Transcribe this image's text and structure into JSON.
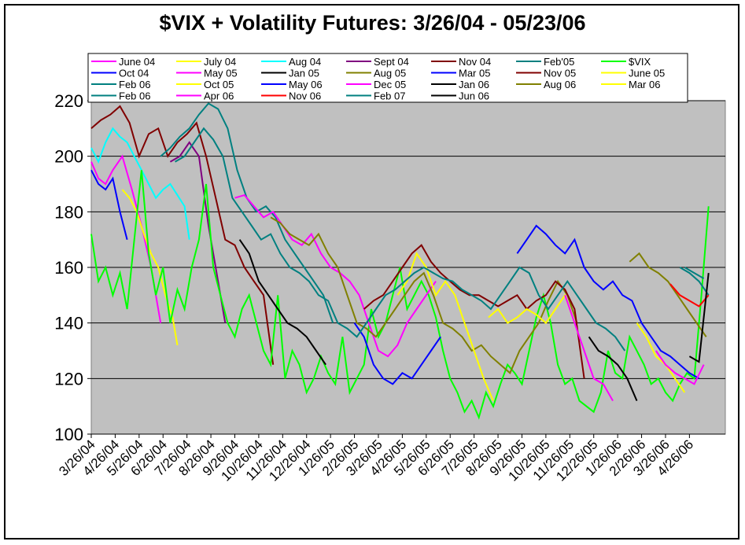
{
  "chart_data": {
    "type": "line",
    "title": "$VIX + Volatility Futures: 3/26/04 - 05/23/06",
    "xlabel": "",
    "ylabel": "",
    "ylim": [
      100,
      220
    ],
    "yticks": [
      100,
      120,
      140,
      160,
      180,
      200,
      220
    ],
    "x_tick_labels": [
      "3/26/04",
      "4/26/04",
      "5/26/04",
      "6/26/04",
      "7/26/04",
      "8/26/04",
      "9/26/04",
      "10/26/04",
      "11/26/04",
      "12/26/04",
      "1/26/05",
      "2/26/05",
      "3/26/05",
      "4/26/05",
      "5/26/05",
      "6/26/05",
      "7/26/05",
      "8/26/05",
      "9/26/05",
      "10/26/05",
      "11/26/05",
      "12/26/05",
      "1/26/06",
      "2/26/06",
      "3/26/06",
      "4/26/06"
    ],
    "grid": "horizontal",
    "plot_background": "#c0c0c0",
    "legend_placement": "top",
    "series": [
      {
        "name": "June 04",
        "color": "#ff00ff",
        "x": [
          0,
          0.3,
          0.6,
          0.9,
          1.3,
          1.7,
          2.1,
          2.5,
          2.9
        ],
        "y": [
          198,
          192,
          190,
          195,
          200,
          188,
          175,
          160,
          140
        ]
      },
      {
        "name": "July 04",
        "color": "#ffff00",
        "x": [
          1.3,
          1.6,
          1.9,
          2.2,
          2.5,
          2.8,
          3.1,
          3.4,
          3.6
        ],
        "y": [
          188,
          185,
          180,
          172,
          165,
          160,
          150,
          142,
          132
        ]
      },
      {
        "name": "Aug 04",
        "color": "#00ffff",
        "x": [
          0,
          0.3,
          0.6,
          0.9,
          1.2,
          1.5,
          1.8,
          2.1,
          2.4,
          2.7,
          3.0,
          3.3,
          3.6,
          3.9,
          4.1
        ],
        "y": [
          203,
          198,
          205,
          210,
          207,
          205,
          200,
          195,
          190,
          185,
          188,
          190,
          186,
          182,
          170
        ]
      },
      {
        "name": "Sept 04",
        "color": "#800080",
        "x": [
          3.3,
          3.7,
          4.1,
          4.5,
          4.9,
          5.3,
          5.6
        ],
        "y": [
          198,
          200,
          205,
          200,
          175,
          155,
          140
        ]
      },
      {
        "name": "Nov 04",
        "color": "#800000",
        "x": [
          0,
          0.4,
          0.8,
          1.2,
          1.6,
          2.0,
          2.4,
          2.8,
          3.2,
          3.6,
          4.0,
          4.4,
          4.8,
          5.2,
          5.6,
          6.0,
          6.4,
          6.8,
          7.2,
          7.6
        ],
        "y": [
          210,
          213,
          215,
          218,
          212,
          200,
          208,
          210,
          200,
          205,
          208,
          212,
          200,
          185,
          170,
          168,
          160,
          155,
          150,
          125
        ]
      },
      {
        "name": "Feb'05",
        "color": "#008080",
        "x": [
          2.9,
          3.3,
          3.7,
          4.1,
          4.5,
          4.9,
          5.3,
          5.7,
          6.1,
          6.5,
          6.9,
          7.3,
          7.7,
          8.1,
          8.5,
          8.9,
          9.3,
          9.7,
          10.1
        ],
        "y": [
          200,
          203,
          207,
          210,
          215,
          219,
          217,
          210,
          195,
          185,
          180,
          182,
          178,
          170,
          165,
          160,
          155,
          150,
          140
        ]
      },
      {
        "name": "$VIX",
        "color": "#00ff00",
        "x": [
          0,
          0.3,
          0.6,
          0.9,
          1.2,
          1.5,
          1.8,
          2.1,
          2.4,
          2.7,
          3.0,
          3.3,
          3.6,
          3.9,
          4.2,
          4.5,
          4.8,
          5.1,
          5.4,
          5.7,
          6.0,
          6.3,
          6.6,
          6.9,
          7.2,
          7.5,
          7.8,
          8.1,
          8.4,
          8.7,
          9.0,
          9.3,
          9.6,
          9.9,
          10.2,
          10.5,
          10.8,
          11.1,
          11.4,
          11.7,
          12.0,
          12.3,
          12.6,
          12.9,
          13.2,
          13.5,
          13.8,
          14.1,
          14.4,
          14.7,
          15.0,
          15.3,
          15.6,
          15.9,
          16.2,
          16.5,
          16.8,
          17.1,
          17.4,
          17.7,
          18.0,
          18.3,
          18.6,
          18.9,
          19.2,
          19.5,
          19.8,
          20.1,
          20.4,
          20.7,
          21.0,
          21.3,
          21.6,
          21.9,
          22.2,
          22.5,
          22.8,
          23.1,
          23.4,
          23.7,
          24.0,
          24.3,
          24.6,
          24.9,
          25.2,
          25.5,
          25.8
        ],
        "y": [
          172,
          155,
          160,
          150,
          158,
          145,
          170,
          195,
          165,
          150,
          160,
          140,
          152,
          145,
          160,
          170,
          190,
          160,
          150,
          140,
          135,
          145,
          150,
          140,
          130,
          125,
          150,
          120,
          130,
          125,
          115,
          120,
          128,
          122,
          118,
          135,
          115,
          120,
          125,
          145,
          135,
          140,
          150,
          160,
          145,
          150,
          155,
          150,
          142,
          130,
          120,
          115,
          108,
          112,
          106,
          115,
          110,
          118,
          125,
          122,
          118,
          130,
          142,
          150,
          140,
          125,
          118,
          120,
          112,
          110,
          108,
          115,
          130,
          122,
          120,
          135,
          130,
          125,
          118,
          120,
          115,
          112,
          118,
          122,
          120,
          150,
          182
        ]
      },
      {
        "name": "Oct 04",
        "color": "#0000ff",
        "x": [
          0,
          0.3,
          0.6,
          0.9,
          1.2,
          1.5
        ],
        "y": [
          195,
          190,
          188,
          192,
          180,
          170
        ]
      },
      {
        "name": "May 05",
        "color": "#ff00ff",
        "x": [
          6.0,
          6.4,
          6.8,
          7.2,
          7.6,
          8.0,
          8.4,
          8.8,
          9.2,
          9.6,
          10.0,
          10.4,
          10.8,
          11.2,
          11.6,
          12.0,
          12.4,
          12.8,
          13.2,
          13.6,
          14.0,
          14.4
        ],
        "y": [
          185,
          186,
          182,
          178,
          180,
          175,
          170,
          168,
          172,
          165,
          160,
          158,
          155,
          150,
          140,
          130,
          128,
          132,
          140,
          145,
          150,
          155
        ]
      },
      {
        "name": "Jan 05",
        "color": "#000000",
        "x": [
          6.2,
          6.6,
          7.0,
          7.4,
          7.8,
          8.2,
          8.6,
          9.0,
          9.4,
          9.8
        ],
        "y": [
          170,
          165,
          155,
          150,
          145,
          140,
          138,
          135,
          130,
          125
        ]
      },
      {
        "name": "Aug 05",
        "color": "#808000",
        "x": [
          7.5,
          7.9,
          8.3,
          8.7,
          9.1,
          9.5,
          9.9,
          10.3,
          10.7,
          11.1,
          11.5,
          11.9,
          12.3,
          12.7,
          13.1,
          13.5,
          13.9,
          14.3,
          14.7,
          15.1,
          15.5,
          15.9,
          16.3,
          16.7,
          17.1,
          17.5,
          17.9,
          18.3,
          18.7,
          19.1,
          19.5,
          19.9,
          20.3
        ],
        "y": [
          178,
          176,
          172,
          170,
          168,
          172,
          165,
          160,
          150,
          140,
          138,
          135,
          140,
          145,
          150,
          155,
          158,
          150,
          140,
          138,
          135,
          130,
          132,
          128,
          125,
          122,
          130,
          135,
          140,
          148,
          155,
          150,
          140
        ]
      },
      {
        "name": "Mar 05",
        "color": "#0000ff",
        "x": [
          11.0,
          11.4,
          11.8,
          12.2,
          12.6,
          13.0,
          13.4,
          13.8,
          14.2,
          14.6
        ],
        "y": [
          140,
          135,
          125,
          120,
          118,
          122,
          120,
          125,
          130,
          135
        ]
      },
      {
        "name": "Nov 05",
        "color": "#800000",
        "x": [
          11.4,
          11.8,
          12.2,
          12.6,
          13.0,
          13.4,
          13.8,
          14.2,
          14.6,
          15.0,
          15.4,
          15.8,
          16.2,
          16.6,
          17.0,
          17.4,
          17.8,
          18.2,
          18.6,
          19.0,
          19.4,
          19.8,
          20.2,
          20.6
        ],
        "y": [
          145,
          148,
          150,
          155,
          160,
          165,
          168,
          162,
          158,
          155,
          152,
          150,
          150,
          148,
          146,
          148,
          150,
          145,
          148,
          150,
          155,
          152,
          145,
          120
        ]
      },
      {
        "name": "June 05",
        "color": "#ffff00",
        "x": [
          12.8,
          13.2,
          13.6,
          14.0,
          14.4,
          14.8,
          15.2,
          15.6,
          16.0,
          16.4,
          16.8
        ],
        "y": [
          150,
          155,
          165,
          160,
          150,
          155,
          150,
          140,
          130,
          120,
          112
        ]
      },
      {
        "name": "Feb 06",
        "color": "#008080",
        "x": [
          3.5,
          3.9,
          4.3,
          4.7,
          5.1,
          5.5,
          5.9,
          6.3,
          6.7,
          7.1,
          7.5,
          7.9,
          8.3,
          8.7,
          9.1,
          9.5,
          9.9,
          10.3,
          10.7,
          11.1,
          11.5,
          11.9,
          12.3,
          12.7,
          13.1,
          13.5,
          13.9,
          14.3,
          14.7,
          15.1,
          15.5,
          15.9,
          16.3,
          16.7,
          17.1,
          17.5,
          17.9,
          18.3,
          18.7,
          19.1,
          19.5,
          19.9,
          20.3,
          20.7,
          21.1,
          21.5,
          21.9,
          22.3
        ],
        "y": [
          198,
          200,
          205,
          210,
          206,
          200,
          185,
          180,
          175,
          170,
          172,
          165,
          160,
          158,
          155,
          150,
          148,
          140,
          138,
          135,
          140,
          145,
          150,
          152,
          155,
          158,
          160,
          158,
          156,
          155,
          152,
          150,
          148,
          145,
          150,
          155,
          160,
          158,
          150,
          145,
          150,
          155,
          150,
          145,
          140,
          138,
          135,
          130
        ]
      },
      {
        "name": "Oct 05",
        "color": "#ffff00",
        "x": [
          16.6,
          17.0,
          17.4,
          17.8,
          18.2,
          18.6,
          19.0,
          19.4,
          19.8,
          20.2
        ],
        "y": [
          142,
          145,
          140,
          142,
          145,
          143,
          140,
          145,
          150,
          140
        ]
      },
      {
        "name": "May 06",
        "color": "#0000ff",
        "x": [
          17.8,
          18.2,
          18.6,
          19.0,
          19.4,
          19.8,
          20.2,
          20.6,
          21.0,
          21.4,
          21.8,
          22.2,
          22.6,
          23.0,
          23.4,
          23.8,
          24.2,
          24.6,
          25.0,
          25.4
        ],
        "y": [
          165,
          170,
          175,
          172,
          168,
          165,
          170,
          160,
          155,
          152,
          155,
          150,
          148,
          140,
          135,
          130,
          128,
          125,
          122,
          120
        ]
      },
      {
        "name": "Dec 05",
        "color": "#ff00ff",
        "x": [
          19.8,
          20.2,
          20.6,
          21.0,
          21.4,
          21.8
        ],
        "y": [
          150,
          140,
          130,
          120,
          118,
          112
        ]
      },
      {
        "name": "Jan 06",
        "color": "#000000",
        "x": [
          20.8,
          21.2,
          21.6,
          22.0,
          22.4,
          22.8
        ],
        "y": [
          135,
          130,
          128,
          125,
          120,
          112
        ]
      },
      {
        "name": "Aug 06",
        "color": "#808000",
        "x": [
          22.5,
          22.9,
          23.3,
          23.7,
          24.1,
          24.5,
          24.9,
          25.3,
          25.7
        ],
        "y": [
          162,
          165,
          160,
          158,
          155,
          150,
          145,
          140,
          135
        ]
      },
      {
        "name": "Mar 06",
        "color": "#ffff00",
        "x": [
          22.8,
          23.2,
          23.6,
          24.0,
          24.4,
          24.8
        ],
        "y": [
          140,
          135,
          128,
          125,
          120,
          115
        ]
      },
      {
        "name": "Feb 06",
        "color": "#008080",
        "x": [
          24.6,
          25.0,
          25.4,
          25.8
        ],
        "y": [
          160,
          158,
          155,
          150
        ]
      },
      {
        "name": "Apr 06",
        "color": "#ff00ff",
        "x": [
          23.6,
          24.0,
          24.4,
          24.8,
          25.2,
          25.6
        ],
        "y": [
          130,
          125,
          122,
          120,
          118,
          125
        ]
      },
      {
        "name": "Nov 06",
        "color": "#ff0000",
        "x": [
          24.2,
          24.6,
          25.0,
          25.4,
          25.8
        ],
        "y": [
          154,
          150,
          148,
          146,
          150
        ]
      },
      {
        "name": "Feb 07",
        "color": "#008080",
        "x": [
          24.8,
          25.2,
          25.6
        ],
        "y": [
          160,
          158,
          156
        ]
      },
      {
        "name": "Jun 06",
        "color": "#000000",
        "x": [
          25.0,
          25.4,
          25.8
        ],
        "y": [
          128,
          126,
          158
        ]
      }
    ]
  }
}
